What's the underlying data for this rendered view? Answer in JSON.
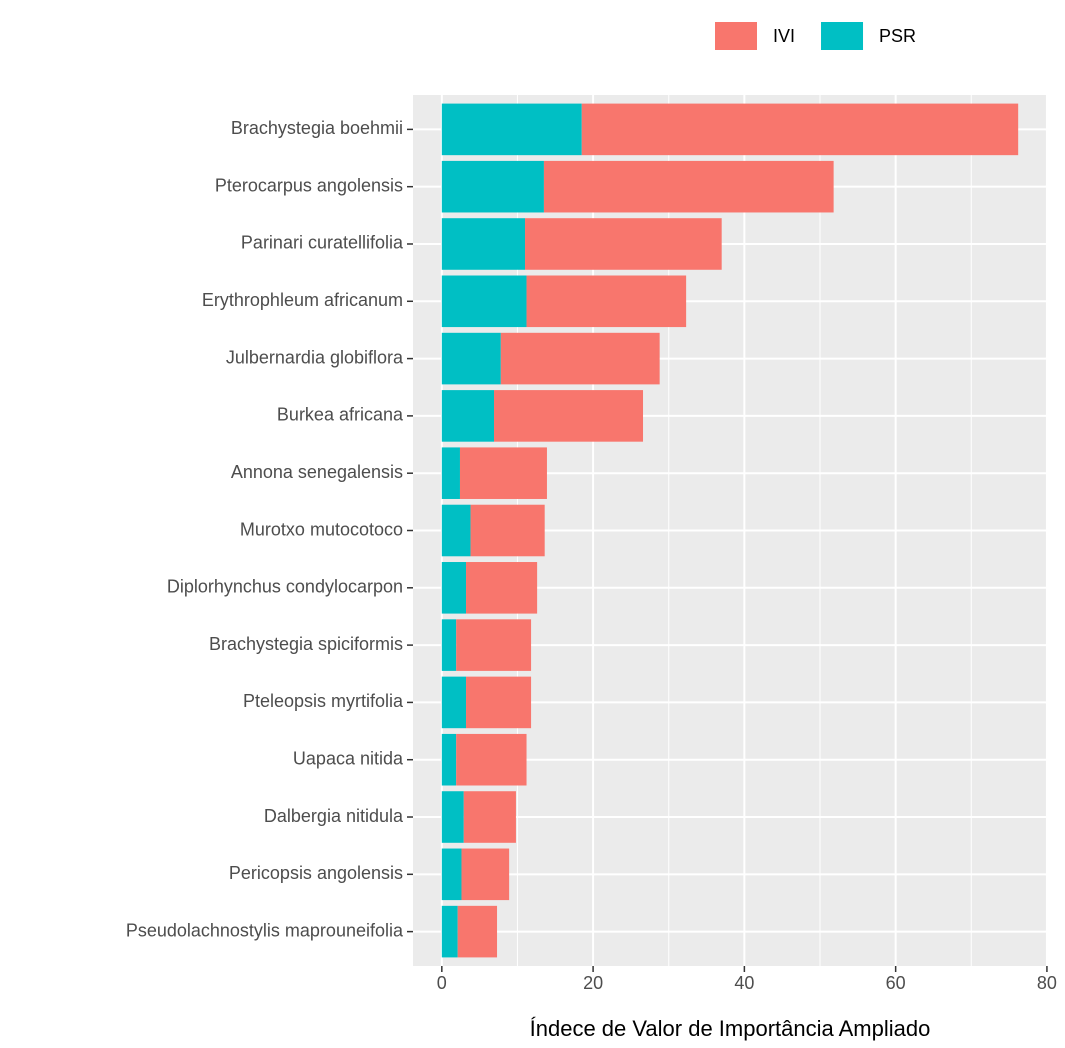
{
  "chart_data": {
    "type": "stacked_barh",
    "xlabel": "Índece de Valor de Importância Ampliado",
    "categories": [
      "Brachystegia boehmii",
      "Pterocarpus angolensis",
      "Parinari curatellifolia",
      "Erythrophleum africanum",
      "Julbernardia globiflora",
      "Burkea africana",
      "Annona senegalensis",
      "Murotxo mutocotoco",
      "Diplorhynchus condylocarpon",
      "Brachystegia spiciformis",
      "Pteleopsis myrtifolia",
      "Uapaca nitida",
      "Dalbergia nitidula",
      "Pericopsis angolensis",
      "Pseudolachnostylis maprouneifolia"
    ],
    "series": [
      {
        "name": "IVI",
        "color": "#f8766d",
        "values": [
          57.7,
          38.3,
          26.0,
          21.1,
          21.0,
          19.7,
          11.5,
          9.8,
          9.4,
          9.9,
          8.6,
          9.3,
          6.9,
          6.3,
          5.2
        ]
      },
      {
        "name": "PSR",
        "color": "#00bfc4",
        "values": [
          18.5,
          13.5,
          11.0,
          11.2,
          7.8,
          6.9,
          2.4,
          3.8,
          3.2,
          1.9,
          3.2,
          1.9,
          2.9,
          2.6,
          2.1
        ]
      }
    ],
    "xlim": [
      -3.81,
      80.01
    ],
    "xticks": [
      0,
      20,
      40,
      60,
      80
    ],
    "grid": true,
    "legend": "top"
  }
}
